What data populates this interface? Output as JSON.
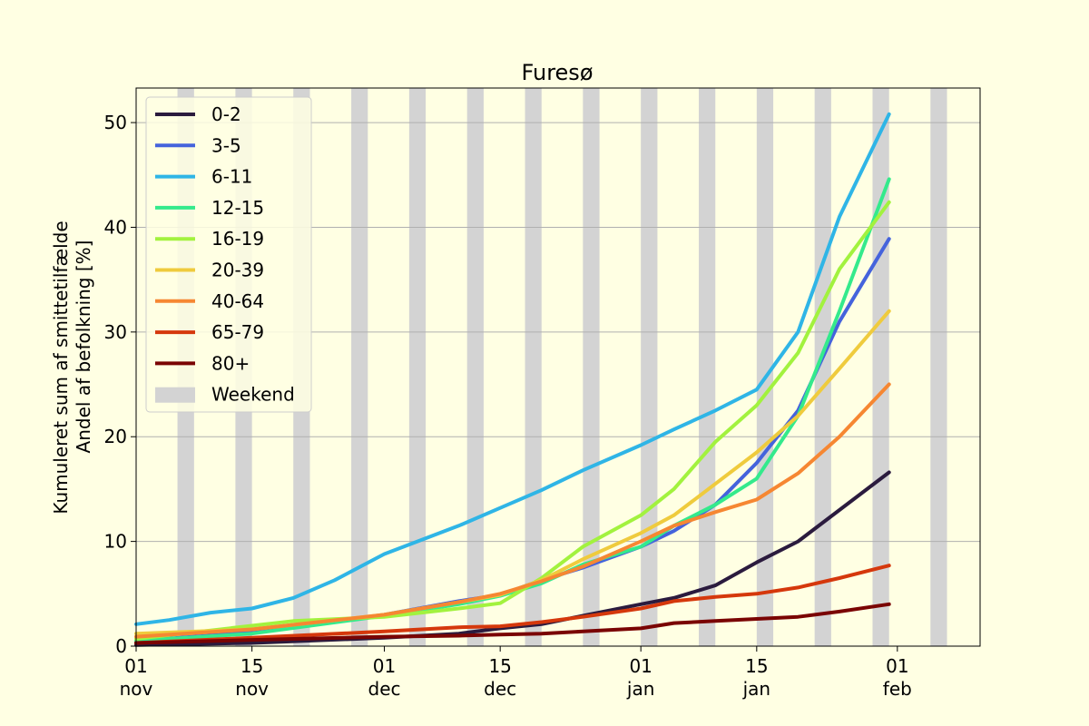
{
  "chart_data": {
    "type": "line",
    "title": "Furesø",
    "ylabel_line1": "Kumuleret sum af smittetilfælde",
    "ylabel_line2": "Andel af befolkning [%]",
    "xlabel": "",
    "x_range": [
      "2021-11-01",
      "2022-02-11"
    ],
    "ylim": [
      0,
      53.3
    ],
    "yticks": [
      0,
      10,
      20,
      30,
      40,
      50
    ],
    "xticks": [
      {
        "date": "2021-11-01",
        "line1": "01",
        "line2": "nov"
      },
      {
        "date": "2021-11-15",
        "line1": "15",
        "line2": "nov"
      },
      {
        "date": "2021-12-01",
        "line1": "01",
        "line2": "dec"
      },
      {
        "date": "2021-12-15",
        "line1": "15",
        "line2": "dec"
      },
      {
        "date": "2022-01-01",
        "line1": "01",
        "line2": "jan"
      },
      {
        "date": "2022-01-15",
        "line1": "15",
        "line2": "jan"
      },
      {
        "date": "2022-02-01",
        "line1": "01",
        "line2": "feb"
      }
    ],
    "grid": "horizontal",
    "legend_position": "top-left",
    "weekend_label": "Weekend",
    "weekend_color": "#d3d3d3",
    "weekends": [
      [
        "2021-11-06",
        "2021-11-08"
      ],
      [
        "2021-11-13",
        "2021-11-15"
      ],
      [
        "2021-11-20",
        "2021-11-22"
      ],
      [
        "2021-11-27",
        "2021-11-29"
      ],
      [
        "2021-12-04",
        "2021-12-06"
      ],
      [
        "2021-12-11",
        "2021-12-13"
      ],
      [
        "2021-12-18",
        "2021-12-20"
      ],
      [
        "2021-12-25",
        "2021-12-27"
      ],
      [
        "2022-01-01",
        "2022-01-03"
      ],
      [
        "2022-01-08",
        "2022-01-10"
      ],
      [
        "2022-01-15",
        "2022-01-17"
      ],
      [
        "2022-01-22",
        "2022-01-24"
      ],
      [
        "2022-01-29",
        "2022-01-31"
      ],
      [
        "2022-02-05",
        "2022-02-07"
      ]
    ],
    "series": [
      {
        "name": "0-2",
        "color": "#2b1b3e",
        "points": [
          [
            "2021-11-01",
            0.1
          ],
          [
            "2021-11-15",
            0.3
          ],
          [
            "2021-12-01",
            0.8
          ],
          [
            "2021-12-10",
            1.2
          ],
          [
            "2021-12-15",
            1.7
          ],
          [
            "2021-12-20",
            2.1
          ],
          [
            "2021-12-25",
            2.9
          ],
          [
            "2022-01-01",
            4.0
          ],
          [
            "2022-01-05",
            4.6
          ],
          [
            "2022-01-10",
            5.8
          ],
          [
            "2022-01-15",
            8.0
          ],
          [
            "2022-01-20",
            10.0
          ],
          [
            "2022-01-25",
            13.0
          ],
          [
            "2022-01-31",
            16.6
          ]
        ]
      },
      {
        "name": "3-5",
        "color": "#4563dc",
        "points": [
          [
            "2021-11-01",
            0.5
          ],
          [
            "2021-11-15",
            1.3
          ],
          [
            "2021-12-01",
            3.0
          ],
          [
            "2021-12-10",
            4.3
          ],
          [
            "2021-12-15",
            4.9
          ],
          [
            "2021-12-20",
            6.3
          ],
          [
            "2021-12-25",
            7.5
          ],
          [
            "2022-01-01",
            9.5
          ],
          [
            "2022-01-05",
            11.0
          ],
          [
            "2022-01-10",
            13.5
          ],
          [
            "2022-01-15",
            17.5
          ],
          [
            "2022-01-20",
            22.5
          ],
          [
            "2022-01-25",
            31.0
          ],
          [
            "2022-01-31",
            38.9
          ]
        ]
      },
      {
        "name": "6-11",
        "color": "#2fb5e6",
        "points": [
          [
            "2021-11-01",
            2.1
          ],
          [
            "2021-11-05",
            2.5
          ],
          [
            "2021-11-10",
            3.2
          ],
          [
            "2021-11-15",
            3.6
          ],
          [
            "2021-11-20",
            4.6
          ],
          [
            "2021-11-25",
            6.3
          ],
          [
            "2021-12-01",
            8.8
          ],
          [
            "2021-12-05",
            10.0
          ],
          [
            "2021-12-10",
            11.5
          ],
          [
            "2021-12-15",
            13.2
          ],
          [
            "2021-12-20",
            14.9
          ],
          [
            "2021-12-25",
            16.8
          ],
          [
            "2022-01-01",
            19.2
          ],
          [
            "2022-01-05",
            20.7
          ],
          [
            "2022-01-10",
            22.5
          ],
          [
            "2022-01-15",
            24.5
          ],
          [
            "2022-01-20",
            30.0
          ],
          [
            "2022-01-25",
            41.0
          ],
          [
            "2022-01-31",
            50.8
          ]
        ]
      },
      {
        "name": "12-15",
        "color": "#34ea8c",
        "points": [
          [
            "2021-11-01",
            0.5
          ],
          [
            "2021-11-15",
            1.2
          ],
          [
            "2021-12-01",
            2.9
          ],
          [
            "2021-12-10",
            4.0
          ],
          [
            "2021-12-15",
            4.8
          ],
          [
            "2021-12-20",
            6.0
          ],
          [
            "2021-12-25",
            7.8
          ],
          [
            "2022-01-01",
            9.5
          ],
          [
            "2022-01-05",
            11.5
          ],
          [
            "2022-01-10",
            13.5
          ],
          [
            "2022-01-15",
            16.0
          ],
          [
            "2022-01-20",
            22.0
          ],
          [
            "2022-01-25",
            32.0
          ],
          [
            "2022-01-31",
            44.6
          ]
        ]
      },
      {
        "name": "16-19",
        "color": "#a2f23e",
        "points": [
          [
            "2021-11-01",
            0.7
          ],
          [
            "2021-11-10",
            1.5
          ],
          [
            "2021-11-20",
            2.4
          ],
          [
            "2021-12-01",
            2.8
          ],
          [
            "2021-12-10",
            3.6
          ],
          [
            "2021-12-15",
            4.1
          ],
          [
            "2021-12-20",
            6.5
          ],
          [
            "2021-12-25",
            9.5
          ],
          [
            "2022-01-01",
            12.5
          ],
          [
            "2022-01-05",
            15.0
          ],
          [
            "2022-01-10",
            19.5
          ],
          [
            "2022-01-15",
            23.0
          ],
          [
            "2022-01-20",
            28.0
          ],
          [
            "2022-01-25",
            36.0
          ],
          [
            "2022-01-31",
            42.4
          ]
        ]
      },
      {
        "name": "20-39",
        "color": "#efcb3d",
        "points": [
          [
            "2021-11-01",
            1.2
          ],
          [
            "2021-11-15",
            1.6
          ],
          [
            "2021-12-01",
            3.0
          ],
          [
            "2021-12-10",
            4.2
          ],
          [
            "2021-12-15",
            4.9
          ],
          [
            "2021-12-20",
            6.3
          ],
          [
            "2021-12-25",
            8.3
          ],
          [
            "2022-01-01",
            10.8
          ],
          [
            "2022-01-05",
            12.5
          ],
          [
            "2022-01-10",
            15.5
          ],
          [
            "2022-01-15",
            18.5
          ],
          [
            "2022-01-20",
            22.0
          ],
          [
            "2022-01-25",
            26.5
          ],
          [
            "2022-01-31",
            32.0
          ]
        ]
      },
      {
        "name": "40-64",
        "color": "#f68732",
        "points": [
          [
            "2021-11-01",
            0.9
          ],
          [
            "2021-11-15",
            1.6
          ],
          [
            "2021-12-01",
            3.0
          ],
          [
            "2021-12-10",
            4.2
          ],
          [
            "2021-12-15",
            5.0
          ],
          [
            "2021-12-20",
            6.2
          ],
          [
            "2021-12-25",
            7.6
          ],
          [
            "2022-01-01",
            10.0
          ],
          [
            "2022-01-05",
            11.5
          ],
          [
            "2022-01-10",
            12.8
          ],
          [
            "2022-01-15",
            14.0
          ],
          [
            "2022-01-20",
            16.5
          ],
          [
            "2022-01-25",
            20.0
          ],
          [
            "2022-01-31",
            25.0
          ]
        ]
      },
      {
        "name": "65-79",
        "color": "#d5380c",
        "points": [
          [
            "2021-11-01",
            0.3
          ],
          [
            "2021-11-15",
            0.8
          ],
          [
            "2021-12-01",
            1.4
          ],
          [
            "2021-12-10",
            1.8
          ],
          [
            "2021-12-15",
            1.9
          ],
          [
            "2021-12-20",
            2.3
          ],
          [
            "2021-12-25",
            2.8
          ],
          [
            "2022-01-01",
            3.6
          ],
          [
            "2022-01-05",
            4.3
          ],
          [
            "2022-01-10",
            4.7
          ],
          [
            "2022-01-15",
            5.0
          ],
          [
            "2022-01-20",
            5.6
          ],
          [
            "2022-01-25",
            6.5
          ],
          [
            "2022-01-31",
            7.7
          ]
        ]
      },
      {
        "name": "80+",
        "color": "#7a0403",
        "points": [
          [
            "2021-11-01",
            0.3
          ],
          [
            "2021-11-15",
            0.6
          ],
          [
            "2021-12-01",
            0.9
          ],
          [
            "2021-12-10",
            1.0
          ],
          [
            "2021-12-15",
            1.1
          ],
          [
            "2021-12-20",
            1.2
          ],
          [
            "2021-12-25",
            1.4
          ],
          [
            "2022-01-01",
            1.7
          ],
          [
            "2022-01-05",
            2.2
          ],
          [
            "2022-01-10",
            2.4
          ],
          [
            "2022-01-15",
            2.6
          ],
          [
            "2022-01-20",
            2.8
          ],
          [
            "2022-01-25",
            3.3
          ],
          [
            "2022-01-31",
            4.0
          ]
        ]
      }
    ]
  }
}
